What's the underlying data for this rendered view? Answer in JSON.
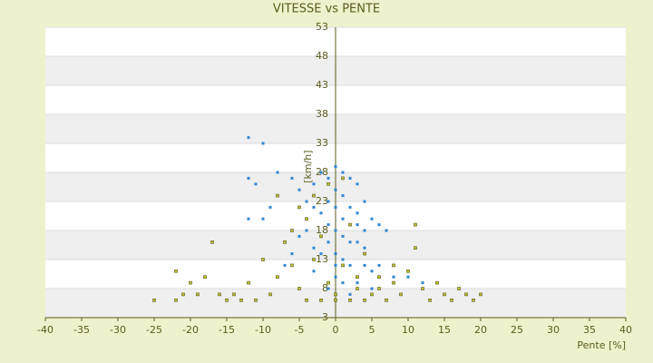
{
  "chart_data": {
    "type": "scatter",
    "title": "VITESSE vs PENTE",
    "x_label": "Pente [%]",
    "y_label": "[km/h]",
    "xlim": [
      -40,
      40
    ],
    "xticks": [
      -40,
      -35,
      -30,
      -25,
      -20,
      -15,
      -10,
      -5,
      0,
      5,
      10,
      15,
      20,
      25,
      30,
      35,
      40
    ],
    "ylim": [
      3,
      53
    ],
    "yticks": [
      3,
      8,
      13,
      18,
      23,
      28,
      33,
      38,
      43,
      48,
      53
    ],
    "grid": true,
    "series": [
      {
        "color": "#2f86d6",
        "x": [
          -12,
          -10,
          -12,
          -11,
          -12,
          -9,
          -8,
          -6,
          -5,
          -4,
          -3,
          -2,
          -1,
          0,
          1,
          2,
          3,
          -3,
          -2,
          -1,
          0,
          1,
          2,
          3,
          4,
          5,
          6,
          7,
          -1,
          0,
          1,
          2,
          3,
          4,
          -4,
          -5,
          -3,
          -2,
          0,
          1,
          2,
          4,
          5,
          6,
          8,
          -6,
          -7,
          -8,
          0,
          1,
          3,
          5,
          -1,
          2,
          10,
          12,
          -3,
          -10,
          4,
          2,
          0,
          1,
          -1,
          3,
          0
        ],
        "values": [
          34,
          33,
          27,
          26,
          20,
          22,
          28,
          27,
          25,
          23,
          26,
          28,
          27,
          29,
          28,
          27,
          26,
          22,
          21,
          23,
          22,
          24,
          22,
          21,
          23,
          20,
          19,
          18,
          19,
          18,
          17,
          19,
          16,
          15,
          18,
          17,
          15,
          14,
          14,
          13,
          12,
          12,
          11,
          12,
          10,
          14,
          12,
          10,
          10,
          9,
          9,
          8,
          8,
          7,
          10,
          9,
          11,
          20,
          18,
          16,
          25,
          20,
          16,
          19,
          12
        ]
      },
      {
        "color": "#c8c030",
        "x": [
          -22,
          -21,
          -20,
          -19,
          -18,
          -17,
          -16,
          -15,
          -14,
          -13,
          -12,
          -11,
          -10,
          -9,
          -8,
          -7,
          -6,
          -5,
          -4,
          -3,
          -2,
          -1,
          0,
          1,
          2,
          3,
          4,
          5,
          6,
          7,
          8,
          9,
          10,
          11,
          11,
          12,
          13,
          14,
          15,
          16,
          17,
          18,
          19,
          20,
          -25,
          -22,
          -2,
          0,
          2,
          -6,
          -5,
          -8,
          -3,
          1,
          3,
          6,
          -1,
          4,
          -4,
          8
        ],
        "values": [
          11,
          7,
          9,
          7,
          10,
          16,
          7,
          6,
          7,
          6,
          9,
          6,
          13,
          7,
          10,
          16,
          12,
          8,
          20,
          24,
          17,
          26,
          7,
          12,
          19,
          8,
          14,
          7,
          10,
          6,
          9,
          7,
          11,
          15,
          19,
          8,
          6,
          9,
          7,
          6,
          8,
          7,
          6,
          7,
          6,
          6,
          6,
          6,
          6,
          18,
          22,
          24,
          13,
          27,
          10,
          8,
          9,
          6,
          6,
          12
        ]
      }
    ]
  }
}
